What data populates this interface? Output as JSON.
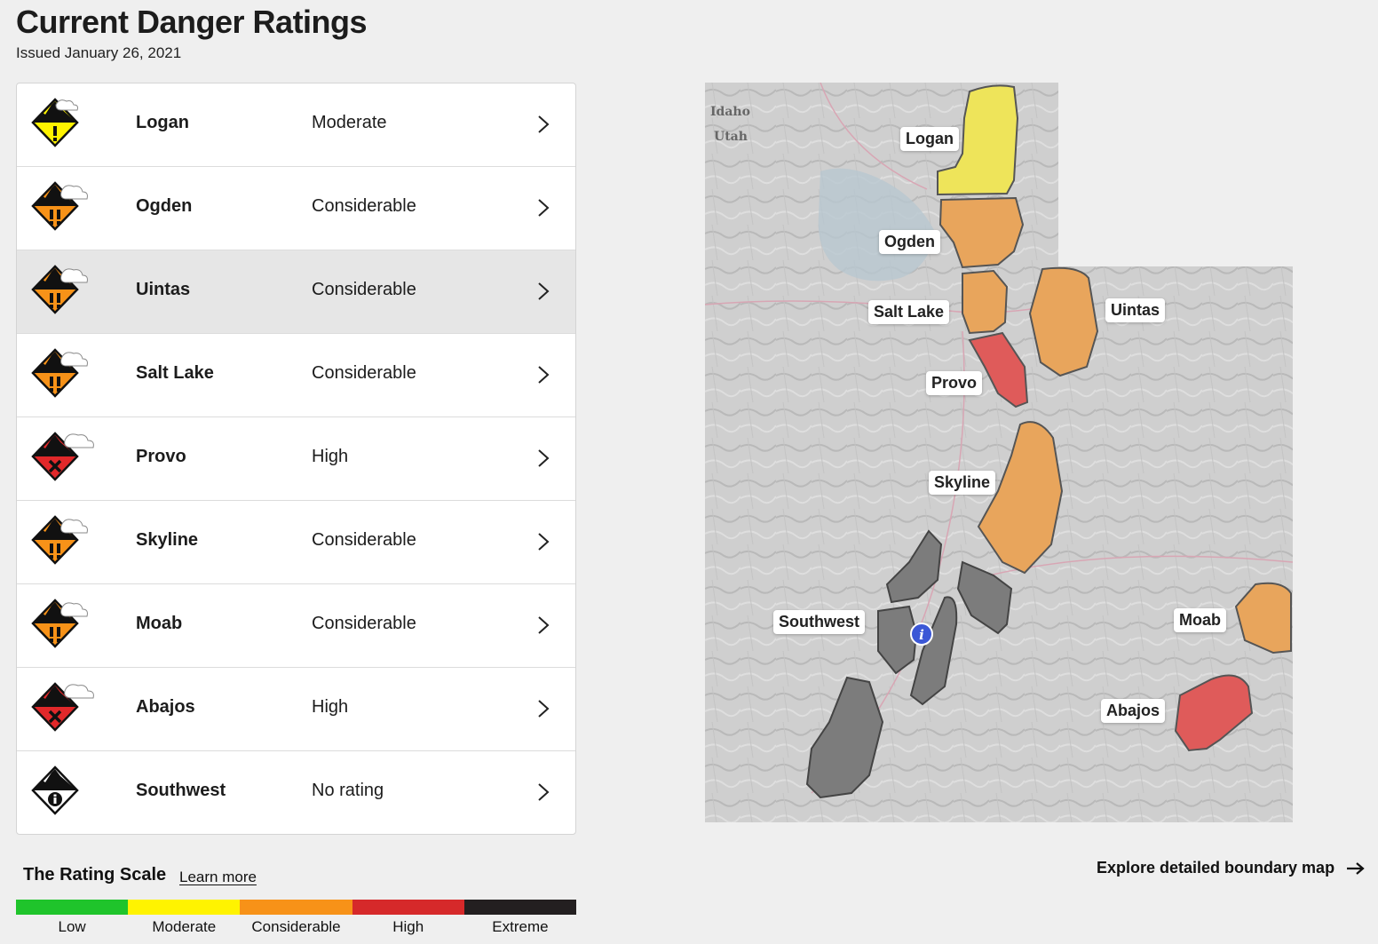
{
  "header": {
    "title": "Current Danger Ratings",
    "issued": "Issued January 26, 2021"
  },
  "zones": [
    {
      "name": "Logan",
      "rating": "Moderate",
      "level": 2,
      "color": "#fff300"
    },
    {
      "name": "Ogden",
      "rating": "Considerable",
      "level": 3,
      "color": "#f79218"
    },
    {
      "name": "Uintas",
      "rating": "Considerable",
      "level": 3,
      "color": "#f79218"
    },
    {
      "name": "Salt Lake",
      "rating": "Considerable",
      "level": 3,
      "color": "#f79218"
    },
    {
      "name": "Provo",
      "rating": "High",
      "level": 4,
      "color": "#e1282a"
    },
    {
      "name": "Skyline",
      "rating": "Considerable",
      "level": 3,
      "color": "#f79218"
    },
    {
      "name": "Moab",
      "rating": "Considerable",
      "level": 3,
      "color": "#f79218"
    },
    {
      "name": "Abajos",
      "rating": "High",
      "level": 4,
      "color": "#e1282a"
    },
    {
      "name": "Southwest",
      "rating": "No rating",
      "level": 0,
      "color": "#ffffff"
    }
  ],
  "rating_scale": {
    "title": "The Rating Scale",
    "learn_more": "Learn more",
    "levels": [
      {
        "label": "Low",
        "color": "#1fc42b"
      },
      {
        "label": "Moderate",
        "color": "#fff300"
      },
      {
        "label": "Considerable",
        "color": "#f79218"
      },
      {
        "label": "High",
        "color": "#d6292a"
      },
      {
        "label": "Extreme",
        "color": "#231f20"
      }
    ]
  },
  "map": {
    "state_labels": [
      "Idaho",
      "Utah"
    ],
    "zone_labels": {
      "logan": "Logan",
      "ogden": "Ogden",
      "salt_lake": "Salt Lake",
      "uintas": "Uintas",
      "provo": "Provo",
      "skyline": "Skyline",
      "southwest": "Southwest",
      "moab": "Moab",
      "abajos": "Abajos"
    },
    "fill_colors": {
      "moderate": "#eee45a",
      "considerable": "#e8a55c",
      "high": "#df5b5a",
      "no_rating": "#7c7c7c"
    }
  },
  "explore_link": "Explore detailed boundary map"
}
